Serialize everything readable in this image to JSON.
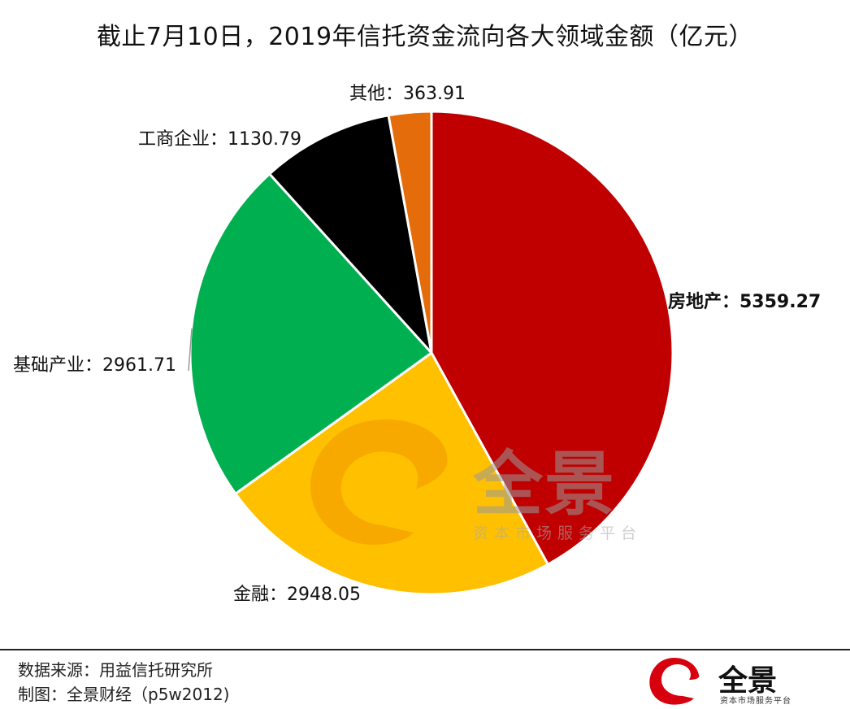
{
  "title": "截止7月10日，2019年信托资金流向各大领域金额（亿元）",
  "chart_data": {
    "type": "pie",
    "unit": "亿元",
    "start_angle_deg": 0,
    "direction": "clockwise",
    "slices": [
      {
        "name": "房地产",
        "value": 5359.27,
        "color": "#c00000",
        "label": "房地产：5359.27",
        "bold": true
      },
      {
        "name": "金融",
        "value": 2948.05,
        "color": "#ffc000",
        "label": "金融：2948.05"
      },
      {
        "name": "基础产业",
        "value": 2961.71,
        "color": "#00b050",
        "label": "基础产业：2961.71"
      },
      {
        "name": "工商企业",
        "value": 1130.79,
        "color": "#000000",
        "label": "工商企业：1130.79"
      },
      {
        "name": "其他",
        "value": 363.91,
        "color": "#e46c0a",
        "label": "其他：363.91"
      }
    ]
  },
  "watermark": {
    "name": "全景",
    "tagline": "资本市场服务平台"
  },
  "footer": {
    "source": "数据来源：用益信托研究所",
    "credit": "制图：全景财经（p5w2012)"
  },
  "brand": {
    "name": "全景",
    "tagline": "资本市场服务平台",
    "color": "#d7000f"
  }
}
